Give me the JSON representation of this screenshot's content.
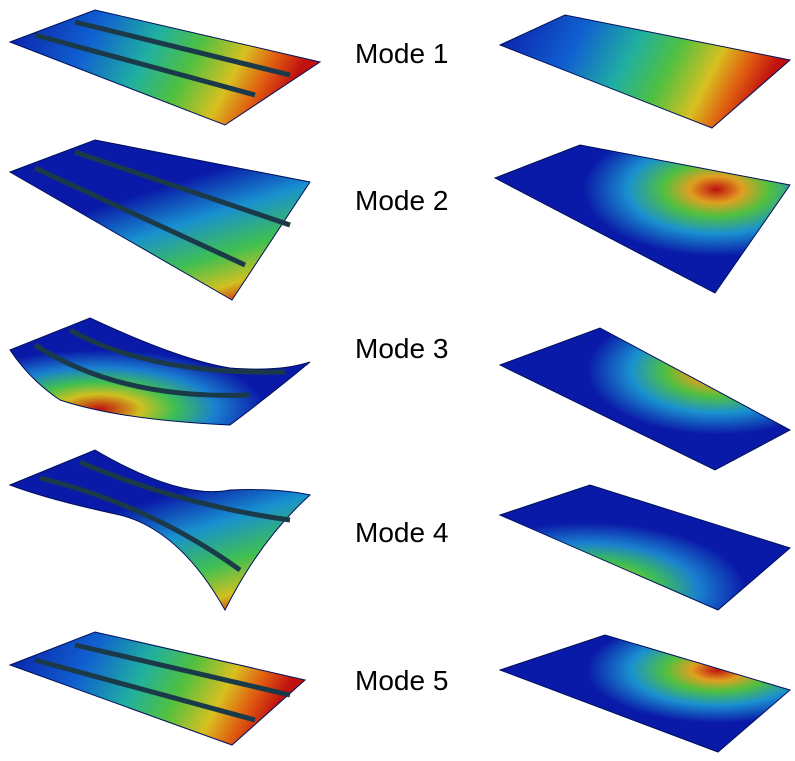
{
  "modes": [
    {
      "label": "Mode 1"
    },
    {
      "label": "Mode 2"
    },
    {
      "label": "Mode 3"
    },
    {
      "label": "Mode 4"
    },
    {
      "label": "Mode 5"
    }
  ]
}
